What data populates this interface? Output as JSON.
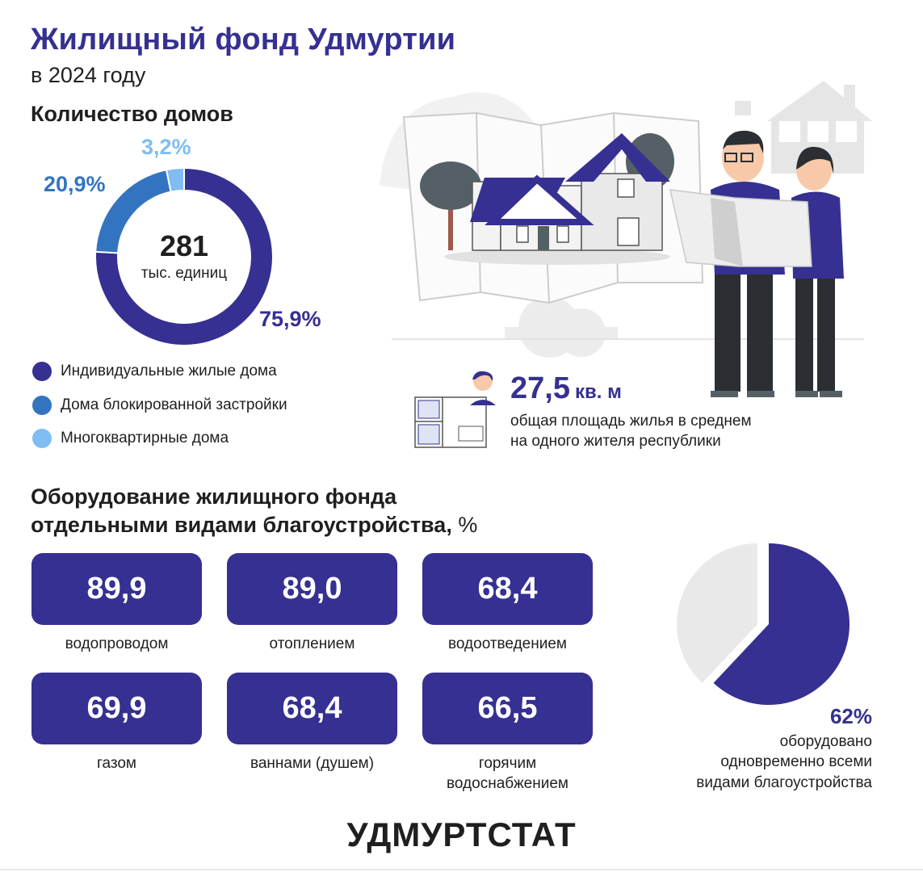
{
  "header": {
    "title": "Жилищный фонд Удмуртии",
    "subtitle": "в 2024 году"
  },
  "houses": {
    "section_title": "Количество домов",
    "center_value": "281",
    "center_unit": "тыс. единиц",
    "legend": [
      "Индивидуальные жилые дома",
      "Дома блокированной застройки",
      "Многоквартирные дома"
    ]
  },
  "area": {
    "value": "27,5",
    "unit": "кв. м",
    "description_line1": "общая площадь жилья в среднем",
    "description_line2": "на одного жителя республики"
  },
  "equipment": {
    "title_line1": "Оборудование жилищного фонда",
    "title_line2": "отдельными видами благоустройства,",
    "unit": " %",
    "stats": [
      {
        "value": "89,9",
        "label": "водопроводом",
        "label2": ""
      },
      {
        "value": "89,0",
        "label": "отоплением",
        "label2": ""
      },
      {
        "value": "68,4",
        "label": "водоотведением",
        "label2": ""
      },
      {
        "value": "69,9",
        "label": "газом",
        "label2": ""
      },
      {
        "value": "68,4",
        "label": "ваннами (душем)",
        "label2": ""
      },
      {
        "value": "66,5",
        "label": "горячим",
        "label2": "водоснабжением"
      }
    ]
  },
  "fully_equipped": {
    "percent_text": "62%",
    "line1": "оборудовано",
    "line2": "одновременно всеми",
    "line3": "видами благоустройства"
  },
  "logo": "УДМУРТСТАТ",
  "colors": {
    "primary": "#353091",
    "blue": "#3374c1",
    "light_blue": "#7fbdf2",
    "grey": "#e9e9e9"
  },
  "chart_data": [
    {
      "type": "pie",
      "variant": "donut",
      "title": "Количество домов",
      "center_value": "281",
      "center_unit": "тыс. единиц",
      "series": [
        {
          "name": "Индивидуальные жилые дома",
          "value": 75.9,
          "label": "75,9%",
          "color": "#353091"
        },
        {
          "name": "Дома блокированной застройки",
          "value": 20.9,
          "label": "20,9%",
          "color": "#3374c1"
        },
        {
          "name": "Многоквартирные дома",
          "value": 3.2,
          "label": "3,2%",
          "color": "#7fbdf2"
        }
      ]
    },
    {
      "type": "pie",
      "series": [
        {
          "value": 62,
          "label": "62%",
          "color": "#353091"
        },
        {
          "value": 38,
          "color": "#e9e9e9"
        }
      ]
    }
  ]
}
